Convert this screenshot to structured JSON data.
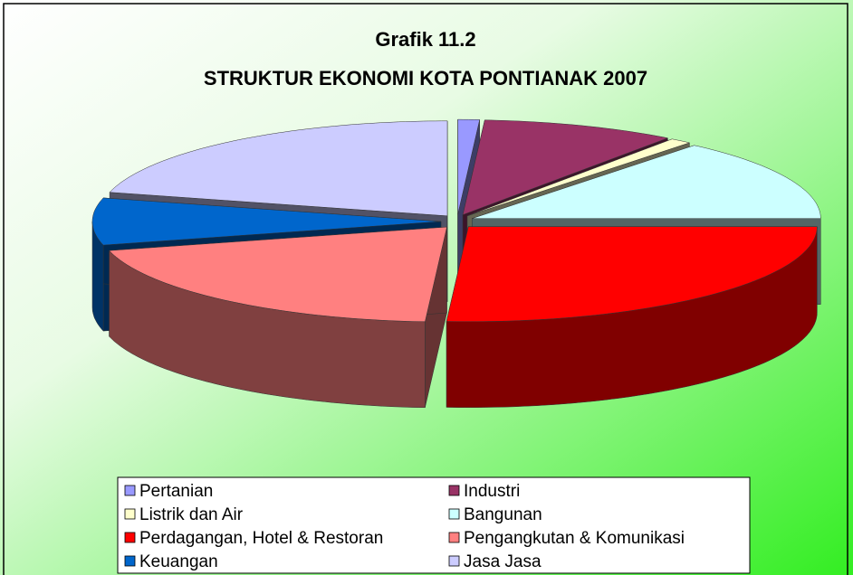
{
  "chart_data": {
    "type": "pie3d",
    "title": "Grafik 11.2",
    "subtitle": "STRUKTUR EKONOMI KOTA PONTIANAK 2007",
    "categories": [
      "Pertanian",
      "Industri",
      "Listrik dan Air",
      "Bangunan",
      "Perdagangan, Hotel & Restoran",
      "Pengangkutan & Komunikasi",
      "Keuangan",
      "Jasa Jasa"
    ],
    "values": [
      1,
      9,
      1,
      14,
      26,
      20,
      8,
      21
    ],
    "colors": [
      "#9999ff",
      "#993366",
      "#ffffcc",
      "#ccffff",
      "#ff0000",
      "#ff8080",
      "#0066cc",
      "#ccccff"
    ],
    "legend": "bottom"
  }
}
